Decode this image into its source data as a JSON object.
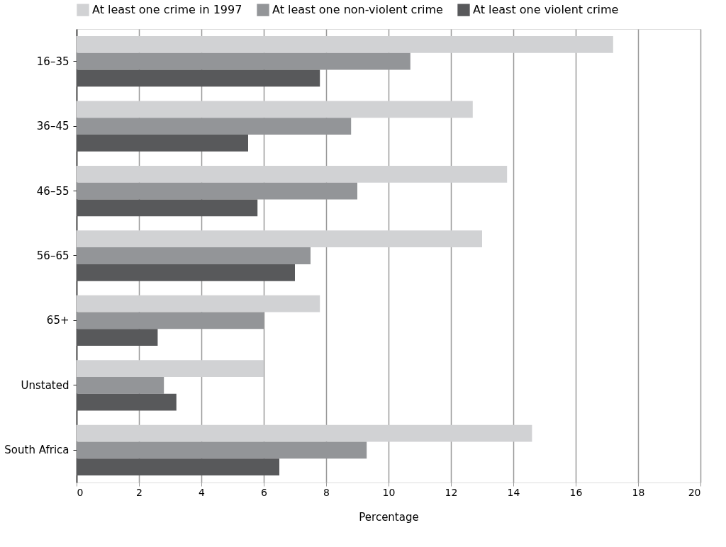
{
  "chart_data": {
    "type": "bar",
    "orientation": "horizontal",
    "xlabel": "Percentage",
    "categories": [
      "16–35",
      "36–45",
      "46–55",
      "56–65",
      "65+",
      "Unstated",
      "South Africa"
    ],
    "series": [
      {
        "name": "At least one crime in 1997",
        "color": "#d1d2d4",
        "values": [
          17.2,
          12.7,
          13.8,
          13.0,
          7.8,
          6.0,
          14.6
        ]
      },
      {
        "name": "At least one non-violent crime",
        "color": "#939598",
        "values": [
          10.7,
          8.8,
          9.0,
          7.5,
          6.0,
          2.8,
          9.3
        ]
      },
      {
        "name": "At least one violent crime",
        "color": "#58595b",
        "values": [
          7.8,
          5.5,
          5.8,
          7.0,
          2.6,
          3.2,
          6.5
        ]
      }
    ],
    "xlim": [
      0,
      20
    ],
    "xticks": [
      0,
      2,
      4,
      6,
      8,
      10,
      12,
      14,
      16,
      18,
      20
    ],
    "grid": "x",
    "legend": "top"
  }
}
